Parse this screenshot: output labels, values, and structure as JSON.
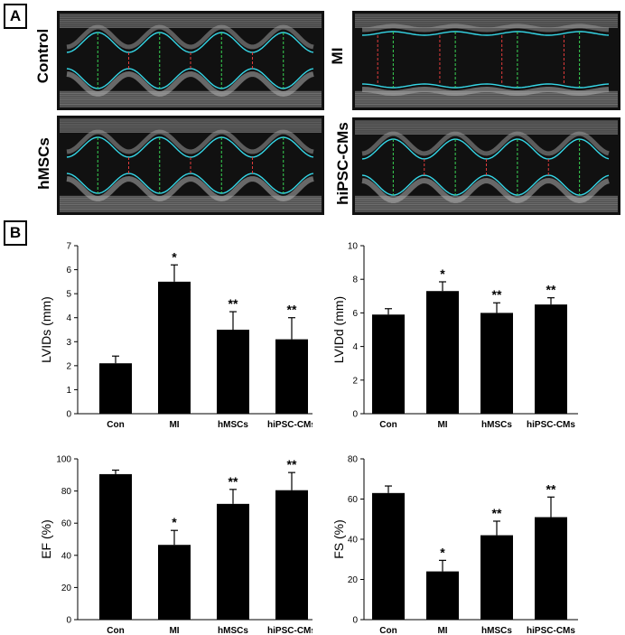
{
  "panels": {
    "a_label": "A",
    "b_label": "B"
  },
  "echo_images": [
    {
      "label": "Control",
      "pattern": "wave"
    },
    {
      "label": "MI",
      "pattern": "flat"
    },
    {
      "label": "hMSCs",
      "pattern": "wave"
    },
    {
      "label": "hiPSC-CMs",
      "pattern": "wave"
    }
  ],
  "colors": {
    "bar": "#000000",
    "trace": "#35d6e6",
    "marker_green": "#39d353",
    "marker_red": "#e23b3b"
  },
  "chart_data": [
    {
      "type": "bar",
      "categories": [
        "Con",
        "MI",
        "hMSCs",
        "hiPSC-CMs"
      ],
      "values": [
        2.1,
        5.5,
        3.5,
        3.1
      ],
      "errors": [
        0.3,
        0.7,
        0.75,
        0.9
      ],
      "significance": [
        "",
        "*",
        "**",
        "**"
      ],
      "ylabel": "LVIDs (mm)",
      "ylim": [
        0,
        7
      ],
      "yticks": [
        0,
        1,
        2,
        3,
        4,
        5,
        6,
        7
      ],
      "grid": false
    },
    {
      "type": "bar",
      "categories": [
        "Con",
        "MI",
        "hMSCs",
        "hiPSC-CMs"
      ],
      "values": [
        5.9,
        7.3,
        6.0,
        6.5
      ],
      "errors": [
        0.35,
        0.55,
        0.6,
        0.4
      ],
      "significance": [
        "",
        "*",
        "**",
        "**"
      ],
      "ylabel": "LVIDd (mm)",
      "ylim": [
        0,
        10
      ],
      "yticks": [
        0,
        2,
        4,
        6,
        8,
        10
      ],
      "grid": false
    },
    {
      "type": "bar",
      "categories": [
        "Con",
        "MI",
        "hMSCs",
        "hiPSC-CMs"
      ],
      "values": [
        90.5,
        46.5,
        72,
        80.5
      ],
      "errors": [
        2.5,
        9,
        9,
        11
      ],
      "significance": [
        "",
        "*",
        "**",
        "**"
      ],
      "ylabel": "EF (%)",
      "ylim": [
        0,
        100
      ],
      "yticks": [
        0,
        20,
        40,
        60,
        80,
        100
      ],
      "grid": false
    },
    {
      "type": "bar",
      "categories": [
        "Con",
        "MI",
        "hMSCs",
        "hiPSC-CMs"
      ],
      "values": [
        63,
        24,
        42,
        51
      ],
      "errors": [
        3.5,
        5.5,
        7,
        10
      ],
      "significance": [
        "",
        "*",
        "**",
        "**"
      ],
      "ylabel": "FS (%)",
      "ylim": [
        0,
        80
      ],
      "yticks": [
        0,
        20,
        40,
        60,
        80
      ],
      "grid": false
    }
  ]
}
